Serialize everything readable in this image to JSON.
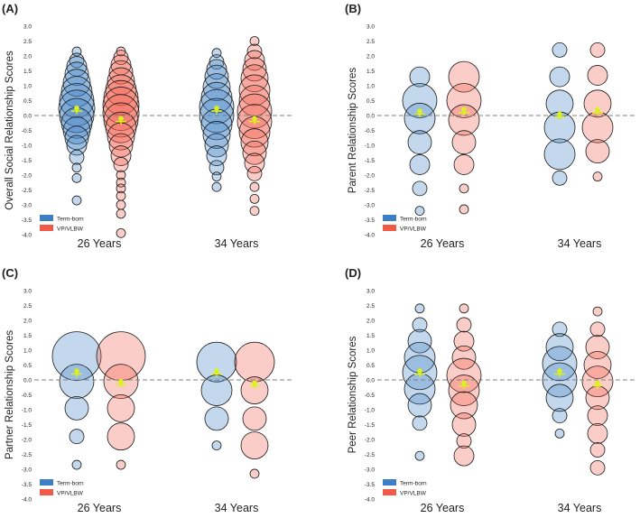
{
  "colors": {
    "term_born": "#3d7fc4",
    "vp_vlbw": "#f25a48",
    "mean_marker": "#ddf21a",
    "zero_line": "#808080",
    "text": "#222222"
  },
  "chart_data": [
    {
      "type": "scatter",
      "panel_label": "(A)",
      "ylabel": "Overall Social Relationship Scores",
      "ylim": [
        -4.0,
        3.0
      ],
      "yticks": [
        "3.0",
        "2.5",
        "2.0",
        "1.5",
        "1.0",
        "0.5",
        "0.0",
        "-0.5",
        "-1.0",
        "-1.5",
        "-2.0",
        "-2.5",
        "-3.0",
        "-3.5",
        "-4.0"
      ],
      "categories": [
        "26 Years",
        "34 Years"
      ],
      "legend": [
        "Term-born",
        "VP/VLBW"
      ],
      "legend_position": "bottom-left",
      "series": [
        {
          "name": "Term-born",
          "groups": [
            {
              "category": "26 Years",
              "mean": 0.15,
              "ci": [
                0.05,
                0.25
              ],
              "bubbles": [
                [
                  2.15,
                  1
                ],
                [
                  1.85,
                  2
                ],
                [
                  1.65,
                  3
                ],
                [
                  1.4,
                  4
                ],
                [
                  1.1,
                  5
                ],
                [
                  0.8,
                  6
                ],
                [
                  0.5,
                  7
                ],
                [
                  0.25,
                  8
                ],
                [
                  0.0,
                  7
                ],
                [
                  -0.25,
                  6
                ],
                [
                  -0.5,
                  5
                ],
                [
                  -0.75,
                  4
                ],
                [
                  -1.0,
                  3
                ],
                [
                  -1.4,
                  2
                ],
                [
                  -1.75,
                  1
                ],
                [
                  -2.1,
                  1
                ],
                [
                  -2.85,
                  1
                ]
              ]
            },
            {
              "category": "34 Years",
              "mean": 0.15,
              "ci": [
                0.05,
                0.25
              ],
              "bubbles": [
                [
                  2.1,
                  1
                ],
                [
                  1.8,
                  2
                ],
                [
                  1.55,
                  3
                ],
                [
                  1.3,
                  4
                ],
                [
                  0.95,
                  5
                ],
                [
                  0.6,
                  6
                ],
                [
                  0.3,
                  7
                ],
                [
                  0.0,
                  7
                ],
                [
                  -0.3,
                  6
                ],
                [
                  -0.65,
                  5
                ],
                [
                  -1.0,
                  4
                ],
                [
                  -1.35,
                  3
                ],
                [
                  -1.75,
                  2
                ],
                [
                  -2.05,
                  1
                ],
                [
                  -2.4,
                  1
                ]
              ]
            }
          ]
        },
        {
          "name": "VP/VLBW",
          "groups": [
            {
              "category": "26 Years",
              "mean": -0.2,
              "ci": [
                -0.3,
                -0.1
              ],
              "bubbles": [
                [
                  2.15,
                  1
                ],
                [
                  1.95,
                  2
                ],
                [
                  1.7,
                  3
                ],
                [
                  1.45,
                  4
                ],
                [
                  1.15,
                  5
                ],
                [
                  0.85,
                  6
                ],
                [
                  0.6,
                  7
                ],
                [
                  0.35,
                  8
                ],
                [
                  0.1,
                  8
                ],
                [
                  -0.15,
                  7
                ],
                [
                  -0.4,
                  6
                ],
                [
                  -0.7,
                  5
                ],
                [
                  -1.0,
                  4
                ],
                [
                  -1.35,
                  3
                ],
                [
                  -1.65,
                  2
                ],
                [
                  -2.0,
                  1
                ],
                [
                  -2.25,
                  1
                ],
                [
                  -2.45,
                  1
                ],
                [
                  -2.7,
                  1
                ],
                [
                  -3.0,
                  1
                ],
                [
                  -3.3,
                  1
                ],
                [
                  -3.95,
                  1
                ]
              ]
            },
            {
              "category": "34 Years",
              "mean": -0.2,
              "ci": [
                -0.3,
                -0.1
              ],
              "bubbles": [
                [
                  2.5,
                  1
                ],
                [
                  2.15,
                  2
                ],
                [
                  1.85,
                  3
                ],
                [
                  1.55,
                  4
                ],
                [
                  1.25,
                  5
                ],
                [
                  0.85,
                  6
                ],
                [
                  0.5,
                  6
                ],
                [
                  0.15,
                  7
                ],
                [
                  -0.2,
                  7
                ],
                [
                  -0.55,
                  6
                ],
                [
                  -0.9,
                  5
                ],
                [
                  -1.25,
                  4
                ],
                [
                  -1.6,
                  3
                ],
                [
                  -1.95,
                  2
                ],
                [
                  -2.4,
                  1
                ],
                [
                  -2.8,
                  1
                ],
                [
                  -3.2,
                  1
                ]
              ]
            }
          ]
        }
      ]
    },
    {
      "type": "scatter",
      "panel_label": "(B)",
      "ylabel": "Parent Relationship Scores",
      "ylim": [
        -4.0,
        3.0
      ],
      "yticks": [
        "3.0",
        "2.5",
        "2.0",
        "1.5",
        "1.0",
        "0.5",
        "0.0",
        "-0.5",
        "-1.0",
        "-1.5",
        "-2.0",
        "-2.5",
        "-3.0",
        "-3.5",
        "-4.0"
      ],
      "categories": [
        "26 Years",
        "34 Years"
      ],
      "legend": [
        "Term-born",
        "VP/VLBW"
      ],
      "legend_position": "bottom-left",
      "series": [
        {
          "name": "Term-born",
          "groups": [
            {
              "category": "26 Years",
              "mean": 0.05,
              "ci": [
                -0.05,
                0.15
              ],
              "bubbles": [
                [
                  1.3,
                  3
                ],
                [
                  0.5,
                  7
                ],
                [
                  -0.1,
                  6
                ],
                [
                  -0.9,
                  4
                ],
                [
                  -1.65,
                  3
                ],
                [
                  -2.45,
                  2
                ],
                [
                  -3.2,
                  1
                ]
              ]
            },
            {
              "category": "34 Years",
              "mean": -0.05,
              "ci": [
                -0.15,
                0.05
              ],
              "bubbles": [
                [
                  2.2,
                  2
                ],
                [
                  1.3,
                  3
                ],
                [
                  0.4,
                  5
                ],
                [
                  -0.4,
                  6
                ],
                [
                  -1.3,
                  6
                ],
                [
                  -2.1,
                  2
                ]
              ]
            }
          ]
        },
        {
          "name": "VP/VLBW",
          "groups": [
            {
              "category": "26 Years",
              "mean": 0.1,
              "ci": [
                0.0,
                0.2
              ],
              "bubbles": [
                [
                  1.3,
                  6
                ],
                [
                  0.5,
                  7
                ],
                [
                  -0.15,
                  6
                ],
                [
                  -0.9,
                  4
                ],
                [
                  -1.65,
                  3
                ],
                [
                  -2.45,
                  1
                ],
                [
                  -3.15,
                  1
                ]
              ]
            },
            {
              "category": "34 Years",
              "mean": 0.1,
              "ci": [
                0.0,
                0.2
              ],
              "bubbles": [
                [
                  2.2,
                  2
                ],
                [
                  1.35,
                  3
                ],
                [
                  0.4,
                  5
                ],
                [
                  -0.4,
                  6
                ],
                [
                  -1.2,
                  4
                ],
                [
                  -2.05,
                  1
                ]
              ]
            }
          ]
        }
      ]
    },
    {
      "type": "scatter",
      "panel_label": "(C)",
      "ylabel": "Partner Relationship Scores",
      "ylim": [
        -4.0,
        3.0
      ],
      "yticks": [
        "3.0",
        "2.5",
        "2.0",
        "1.5",
        "1.0",
        "0.5",
        "0.0",
        "-0.5",
        "-1.0",
        "-1.5",
        "-2.0",
        "-2.5",
        "-3.0",
        "-3.5",
        "-4.0"
      ],
      "categories": [
        "26 Years",
        "34 Years"
      ],
      "legend": [
        "Term-born",
        "VP/VLBW"
      ],
      "legend_position": "bottom-left",
      "series": [
        {
          "name": "Term-born",
          "groups": [
            {
              "category": "26 Years",
              "mean": 0.2,
              "ci": [
                0.1,
                0.3
              ],
              "bubbles": [
                [
                  0.8,
                  10
                ],
                [
                  -0.05,
                  7
                ],
                [
                  -0.95,
                  4
                ],
                [
                  -1.9,
                  2
                ],
                [
                  -2.85,
                  1
                ]
              ]
            },
            {
              "category": "34 Years",
              "mean": 0.2,
              "ci": [
                0.1,
                0.3
              ],
              "bubbles": [
                [
                  0.6,
                  9
                ],
                [
                  -0.35,
                  6
                ],
                [
                  -1.3,
                  4
                ],
                [
                  -2.2,
                  1
                ]
              ]
            }
          ]
        },
        {
          "name": "VP/VLBW",
          "groups": [
            {
              "category": "26 Years",
              "mean": -0.15,
              "ci": [
                -0.25,
                -0.05
              ],
              "bubbles": [
                [
                  0.8,
                  10
                ],
                [
                  -0.05,
                  7
                ],
                [
                  -0.95,
                  5
                ],
                [
                  -1.9,
                  5
                ],
                [
                  -2.85,
                  1
                ]
              ]
            },
            {
              "category": "34 Years",
              "mean": -0.2,
              "ci": [
                -0.3,
                -0.1
              ],
              "bubbles": [
                [
                  0.6,
                  9
                ],
                [
                  -0.35,
                  5
                ],
                [
                  -1.3,
                  4
                ],
                [
                  -2.2,
                  5
                ],
                [
                  -3.15,
                  1
                ]
              ]
            }
          ]
        }
      ]
    },
    {
      "type": "scatter",
      "panel_label": "(D)",
      "ylabel": "Peer Relationship Scores",
      "ylim": [
        -4.0,
        3.0
      ],
      "yticks": [
        "3.0",
        "2.5",
        "2.0",
        "1.5",
        "1.0",
        "0.5",
        "0.0",
        "-0.5",
        "-1.0",
        "-1.5",
        "-2.0",
        "-2.5",
        "-3.0",
        "-3.5",
        "-4.0"
      ],
      "categories": [
        "26 Years",
        "34 Years"
      ],
      "legend": [
        "Term-born",
        "VP/VLBW"
      ],
      "legend_position": "bottom-left",
      "series": [
        {
          "name": "Term-born",
          "groups": [
            {
              "category": "26 Years",
              "mean": 0.2,
              "ci": [
                0.1,
                0.3
              ],
              "bubbles": [
                [
                  2.4,
                  1
                ],
                [
                  1.85,
                  2
                ],
                [
                  1.3,
                  4
                ],
                [
                  0.75,
                  6
                ],
                [
                  0.25,
                  7
                ],
                [
                  -0.3,
                  6
                ],
                [
                  -0.85,
                  4
                ],
                [
                  -1.45,
                  2
                ],
                [
                  -2.55,
                  1
                ]
              ]
            },
            {
              "category": "34 Years",
              "mean": 0.2,
              "ci": [
                0.1,
                0.3
              ],
              "bubbles": [
                [
                  1.7,
                  2
                ],
                [
                  1.1,
                  5
                ],
                [
                  0.55,
                  7
                ],
                [
                  0.0,
                  7
                ],
                [
                  -0.6,
                  5
                ],
                [
                  -1.2,
                  2
                ],
                [
                  -1.8,
                  1
                ]
              ]
            }
          ]
        },
        {
          "name": "VP/VLBW",
          "groups": [
            {
              "category": "26 Years",
              "mean": -0.2,
              "ci": [
                -0.3,
                -0.1
              ],
              "bubbles": [
                [
                  2.4,
                  1
                ],
                [
                  1.85,
                  2
                ],
                [
                  1.3,
                  3
                ],
                [
                  0.75,
                  4
                ],
                [
                  0.15,
                  7
                ],
                [
                  -0.35,
                  6
                ],
                [
                  -0.85,
                  5
                ],
                [
                  -1.5,
                  4
                ],
                [
                  -2.05,
                  2
                ],
                [
                  -2.55,
                  3
                ]
              ]
            },
            {
              "category": "34 Years",
              "mean": -0.2,
              "ci": [
                -0.3,
                -0.1
              ],
              "bubbles": [
                [
                  2.3,
                  1
                ],
                [
                  1.7,
                  2
                ],
                [
                  1.1,
                  4
                ],
                [
                  0.5,
                  5
                ],
                [
                  -0.05,
                  6
                ],
                [
                  -0.6,
                  4
                ],
                [
                  -1.2,
                  3
                ],
                [
                  -1.8,
                  3
                ],
                [
                  -2.35,
                  2
                ],
                [
                  -2.95,
                  2
                ]
              ]
            }
          ]
        }
      ]
    }
  ]
}
